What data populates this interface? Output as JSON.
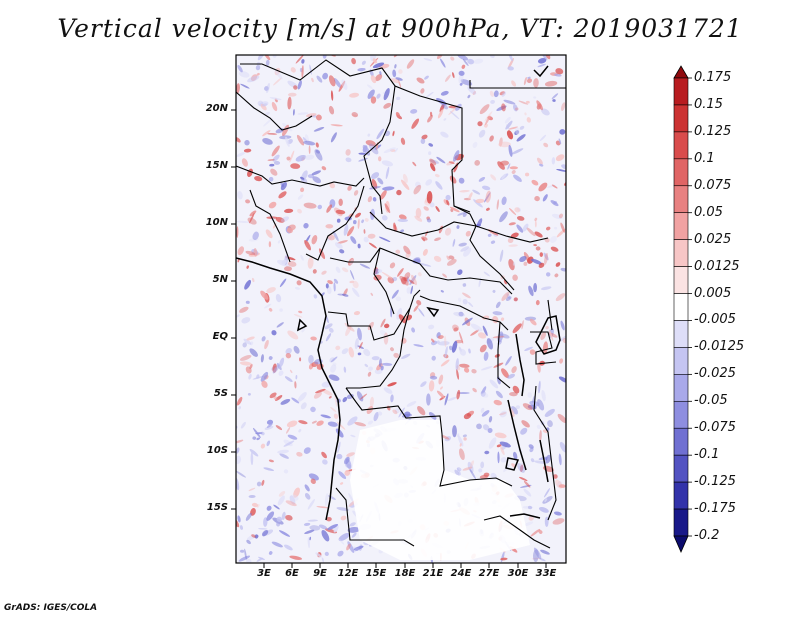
{
  "title": "Vertical velocity [m/s] at 900hPa, VT: 2019031721",
  "map": {
    "lat_labels": [
      "20N",
      "15N",
      "10N",
      "5N",
      "EQ",
      "5S",
      "10S",
      "15S"
    ],
    "lon_labels": [
      "3E",
      "6E",
      "9E",
      "12E",
      "15E",
      "18E",
      "21E",
      "24E",
      "27E",
      "30E",
      "33E"
    ]
  },
  "colorbar": {
    "labels": [
      "0.175",
      "0.15",
      "0.125",
      "0.1",
      "0.075",
      "0.05",
      "0.025",
      "0.0125",
      "0.005",
      "-0.005",
      "-0.0125",
      "-0.025",
      "-0.05",
      "-0.075",
      "-0.1",
      "-0.125",
      "-0.175",
      "-0.2"
    ],
    "colors": [
      "#8f0a0e",
      "#b81c20",
      "#cc3333",
      "#d94c4c",
      "#e06565",
      "#e88181",
      "#f1a2a2",
      "#f7c6c6",
      "#fbe3e3",
      "#ffffff",
      "#dedef8",
      "#c5c5f2",
      "#a9a9ea",
      "#8e8ee0",
      "#7070d2",
      "#5353c2",
      "#3333aa",
      "#191989",
      "#0c0c6e"
    ]
  },
  "credit": "GrADS: IGES/COLA"
}
